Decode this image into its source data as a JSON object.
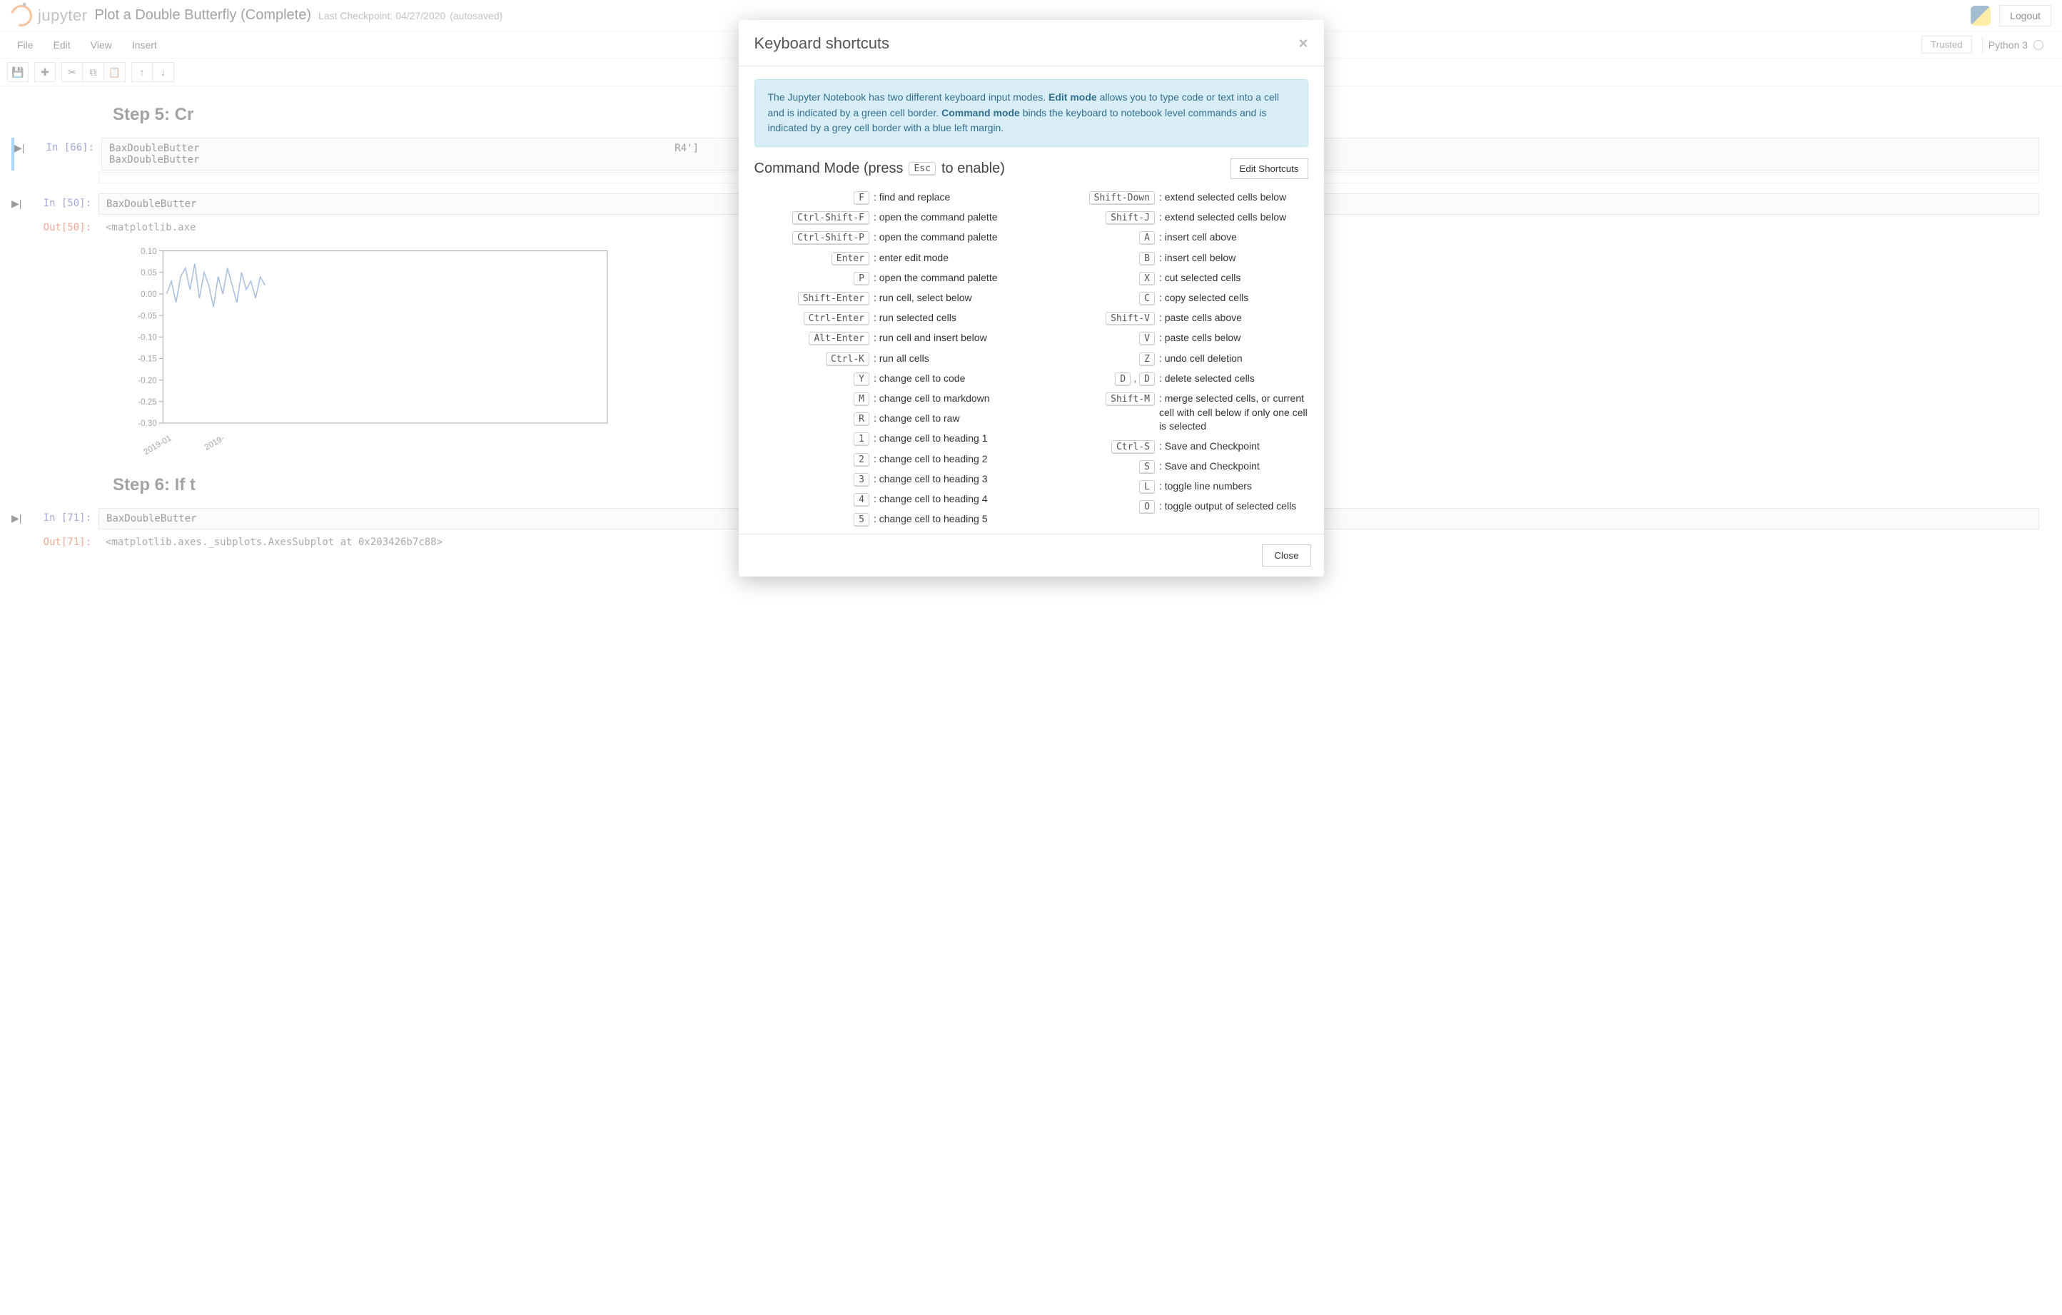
{
  "header": {
    "brand": "jupyter",
    "title": "Plot a Double Butterfly (Complete)",
    "checkpoint": "Last Checkpoint: 04/27/2020",
    "autosaved": "(autosaved)",
    "logout": "Logout"
  },
  "menubar": {
    "items": [
      "File",
      "Edit",
      "View",
      "Insert"
    ],
    "trusted": "Trusted",
    "kernel": "Python 3"
  },
  "toolbar": {
    "save": "💾",
    "add": "✚",
    "cut": "✂",
    "copy": "⧉",
    "paste": "📋",
    "up": "↑",
    "down": "↓"
  },
  "notebook": {
    "step5": "Step 5: Cr",
    "cell66_prompt": "In [66]:",
    "cell66_code": "BaxDoubleButter                                                                               R4']\nBaxDoubleButter",
    "cell50_prompt": "In [50]:",
    "cell50_code": "BaxDoubleButter",
    "out50_prompt": "Out[50]:",
    "out50_text": "<matplotlib.axe",
    "step6": "Step 6: If t",
    "cell71_prompt": "In [71]:",
    "cell71_code": "BaxDoubleButter",
    "out71_prompt": "Out[71]:",
    "out71_text": "<matplotlib.axes._subplots.AxesSubplot at 0x203426b7c88>"
  },
  "chart": {
    "type": "line",
    "y_ticks": [
      "0.10",
      "0.05",
      "0.00",
      "-0.05",
      "-0.10",
      "-0.15",
      "-0.20",
      "-0.25",
      "-0.30"
    ],
    "y_values": [
      0.1,
      0.05,
      0.0,
      -0.05,
      -0.1,
      -0.15,
      -0.2,
      -0.25,
      -0.3
    ],
    "ylim": [
      -0.3,
      0.1
    ],
    "x_labels": [
      "2019-01",
      "2019-"
    ],
    "axis_color": "#444444",
    "line_color": "#3b6fb6",
    "background_color": "#ffffff",
    "series_sample": [
      0.0,
      0.03,
      -0.02,
      0.04,
      0.06,
      0.01,
      0.07,
      -0.01,
      0.05,
      0.02,
      -0.03,
      0.04,
      0.0,
      0.06,
      0.02,
      -0.02,
      0.05,
      0.01,
      0.03,
      -0.01,
      0.04,
      0.02
    ]
  },
  "modal": {
    "title": "Keyboard shortcuts",
    "info_pre": "The Jupyter Notebook has two different keyboard input modes. ",
    "edit_mode_b": "Edit mode",
    "info_mid": " allows you to type code or text into a cell and is indicated by a green cell border. ",
    "cmd_mode_b": "Command mode",
    "info_post": " binds the keyboard to notebook level commands and is indicated by a grey cell border with a blue left margin.",
    "cmd_heading_pre": "Command Mode (press ",
    "cmd_heading_key": "Esc",
    "cmd_heading_post": " to enable)",
    "edit_shortcuts": "Edit Shortcuts",
    "close": "Close",
    "left": [
      {
        "keys": [
          "F"
        ],
        "desc": "find and replace"
      },
      {
        "keys": [
          "Ctrl-Shift-F"
        ],
        "desc": "open the command palette"
      },
      {
        "keys": [
          "Ctrl-Shift-P"
        ],
        "desc": "open the command palette"
      },
      {
        "keys": [
          "Enter"
        ],
        "desc": "enter edit mode"
      },
      {
        "keys": [
          "P"
        ],
        "desc": "open the command palette"
      },
      {
        "keys": [
          "Shift-Enter"
        ],
        "desc": "run cell, select below"
      },
      {
        "keys": [
          "Ctrl-Enter"
        ],
        "desc": "run selected cells"
      },
      {
        "keys": [
          "Alt-Enter"
        ],
        "desc": "run cell and insert below"
      },
      {
        "keys": [
          "Ctrl-K"
        ],
        "desc": "run all cells"
      },
      {
        "keys": [
          "Y"
        ],
        "desc": "change cell to code"
      },
      {
        "keys": [
          "M"
        ],
        "desc": "change cell to markdown"
      },
      {
        "keys": [
          "R"
        ],
        "desc": "change cell to raw"
      },
      {
        "keys": [
          "1"
        ],
        "desc": "change cell to heading 1"
      },
      {
        "keys": [
          "2"
        ],
        "desc": "change cell to heading 2"
      },
      {
        "keys": [
          "3"
        ],
        "desc": "change cell to heading 3"
      },
      {
        "keys": [
          "4"
        ],
        "desc": "change cell to heading 4"
      },
      {
        "keys": [
          "5"
        ],
        "desc": "change cell to heading 5"
      }
    ],
    "right": [
      {
        "keys": [
          "Shift-Down"
        ],
        "desc": "extend selected cells below"
      },
      {
        "keys": [
          "Shift-J"
        ],
        "desc": "extend selected cells below"
      },
      {
        "keys": [
          "A"
        ],
        "desc": "insert cell above"
      },
      {
        "keys": [
          "B"
        ],
        "desc": "insert cell below"
      },
      {
        "keys": [
          "X"
        ],
        "desc": "cut selected cells"
      },
      {
        "keys": [
          "C"
        ],
        "desc": "copy selected cells"
      },
      {
        "keys": [
          "Shift-V"
        ],
        "desc": "paste cells above"
      },
      {
        "keys": [
          "V"
        ],
        "desc": "paste cells below"
      },
      {
        "keys": [
          "Z"
        ],
        "desc": "undo cell deletion"
      },
      {
        "keys": [
          "D",
          "D"
        ],
        "desc": "delete selected cells"
      },
      {
        "keys": [
          "Shift-M"
        ],
        "desc": "merge selected cells, or current cell with cell below if only one cell is selected"
      },
      {
        "keys": [
          "Ctrl-S"
        ],
        "desc": "Save and Checkpoint"
      },
      {
        "keys": [
          "S"
        ],
        "desc": "Save and Checkpoint"
      },
      {
        "keys": [
          "L"
        ],
        "desc": "toggle line numbers"
      },
      {
        "keys": [
          "O"
        ],
        "desc": "toggle output of selected cells"
      }
    ]
  }
}
